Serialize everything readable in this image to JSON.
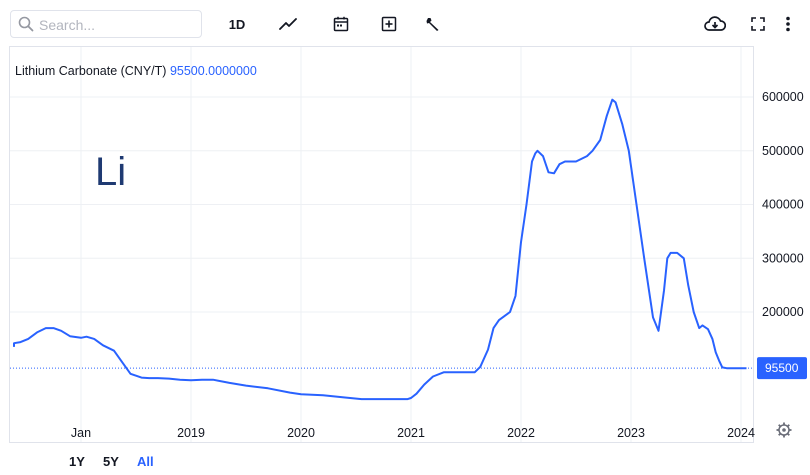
{
  "search": {
    "placeholder": "Search..."
  },
  "toolbar": {
    "interval_label": "1D",
    "icons": [
      "line-chart-icon",
      "calendar-icon",
      "add-compare-icon",
      "wrench-icon",
      "cloud-download-icon",
      "fullscreen-icon",
      "more-vert-icon"
    ]
  },
  "chart_title": {
    "name": "Lithium Carbonate (CNY/T)",
    "value": "95500.0000000"
  },
  "annotation": "Li",
  "range_buttons": [
    "1Y",
    "5Y",
    "All"
  ],
  "active_range": "All",
  "colors": {
    "line": "#2962ff",
    "price_badge": "#2962ff",
    "grid": "#eef0f4",
    "axis_text": "#131722"
  },
  "chart_data": {
    "type": "line",
    "title": "Lithium Carbonate (CNY/T)",
    "x_tick_labels": [
      "Jan",
      "2019",
      "2020",
      "2021",
      "2022",
      "2023",
      "2024"
    ],
    "x_tick_positions": [
      2018.0,
      2019.0,
      2020.0,
      2021.0,
      2022.0,
      2023.0,
      2024.0
    ],
    "y_tick_labels": [
      "200000",
      "300000",
      "400000",
      "500000",
      "600000"
    ],
    "y_ticks": [
      200000,
      300000,
      400000,
      500000,
      600000
    ],
    "ylim": [
      0,
      650000
    ],
    "xlim": [
      2017.3,
      2024.1
    ],
    "last_price": 95500,
    "last_price_label": "95500",
    "grid": true,
    "x": [
      2017.33,
      2017.37,
      2017.45,
      2017.52,
      2017.6,
      2017.68,
      2017.75,
      2017.82,
      2017.9,
      2018.0,
      2018.05,
      2018.12,
      2018.2,
      2018.3,
      2018.38,
      2018.45,
      2018.55,
      2018.62,
      2018.7,
      2018.8,
      2018.9,
      2019.0,
      2019.1,
      2019.2,
      2019.35,
      2019.5,
      2019.7,
      2019.9,
      2020.0,
      2020.2,
      2020.4,
      2020.55,
      2020.7,
      2020.85,
      2020.97,
      2021.0,
      2021.05,
      2021.12,
      2021.2,
      2021.3,
      2021.45,
      2021.58,
      2021.63,
      2021.7,
      2021.75,
      2021.8,
      2021.9,
      2021.95,
      2022.0,
      2022.05,
      2022.1,
      2022.13,
      2022.15,
      2022.2,
      2022.25,
      2022.3,
      2022.35,
      2022.4,
      2022.5,
      2022.6,
      2022.65,
      2022.72,
      2022.78,
      2022.83,
      2022.86,
      2022.92,
      2022.98,
      2023.05,
      2023.12,
      2023.2,
      2023.25,
      2023.3,
      2023.33,
      2023.36,
      2023.42,
      2023.48,
      2023.52,
      2023.57,
      2023.62,
      2023.65,
      2023.7,
      2023.74,
      2023.77,
      2023.8,
      2023.83,
      2023.87,
      2023.93,
      2024.0,
      2024.05
    ],
    "values": [
      135000,
      142000,
      144000,
      150000,
      162000,
      170000,
      170000,
      165000,
      155000,
      152000,
      154000,
      150000,
      138000,
      128000,
      105000,
      85000,
      78000,
      77000,
      77000,
      76000,
      74000,
      73000,
      74000,
      74000,
      68000,
      63000,
      58000,
      50000,
      47000,
      45000,
      41000,
      38000,
      38000,
      38000,
      38000,
      40000,
      48000,
      65000,
      80000,
      88000,
      88000,
      88000,
      98000,
      130000,
      170000,
      185000,
      200000,
      230000,
      330000,
      400000,
      480000,
      495000,
      500000,
      490000,
      460000,
      458000,
      475000,
      480000,
      480000,
      490000,
      500000,
      520000,
      565000,
      595000,
      590000,
      550000,
      500000,
      400000,
      300000,
      190000,
      165000,
      240000,
      300000,
      310000,
      310000,
      300000,
      250000,
      200000,
      170000,
      175000,
      168000,
      150000,
      125000,
      110000,
      97000,
      95500,
      95500,
      95500,
      95500
    ]
  }
}
